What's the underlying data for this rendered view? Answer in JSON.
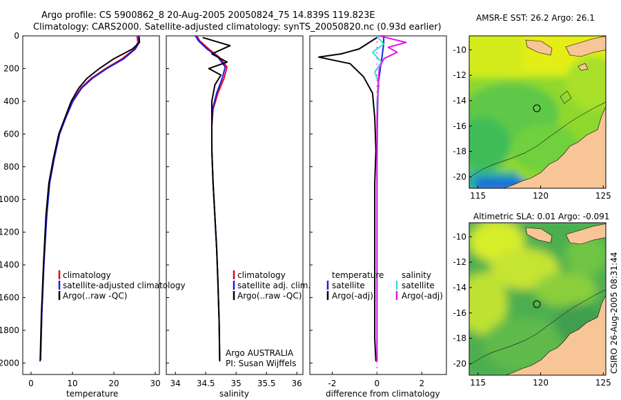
{
  "header": {
    "line1": "Argo profile: CS 5900862_8 20-Aug-2005 20050824_75 14.839S 119.823E",
    "line2": "Climatology: CARS2000. Satellite-adjusted climatology: synTS_20050820.nc (0.93d earlier)"
  },
  "side_label": "CSIRO 26-Aug-2005 08:31:44",
  "depth_axis": {
    "ticks": [
      "0",
      "200",
      "400",
      "600",
      "800",
      "1000",
      "1200",
      "1400",
      "1600",
      "1800",
      "2000"
    ],
    "values": [
      0,
      200,
      400,
      600,
      800,
      1000,
      1200,
      1400,
      1600,
      1800,
      2000
    ],
    "ylim": [
      2070,
      0
    ]
  },
  "panels": {
    "temperature": {
      "xlabel": "temperature",
      "xlim": [
        -2,
        31
      ],
      "ticks": [
        "0",
        "10",
        "20",
        "30"
      ],
      "tick_values": [
        0,
        10,
        20,
        30
      ],
      "legend": [
        "climatology",
        "satellite-adjusted climatology",
        "Argo(..raw -QC)"
      ]
    },
    "salinity": {
      "xlabel": "salinity",
      "xlim": [
        33.85,
        36.1
      ],
      "ticks": [
        "34",
        "34.5",
        "35",
        "35.5",
        "36"
      ],
      "tick_values": [
        34,
        34.5,
        35,
        35.5,
        36
      ],
      "legend": [
        "climatology",
        "satellite adj. clim.",
        "Argo(..raw -QC)"
      ],
      "note1": "Argo AUSTRALIA",
      "note2": "PI: Susan Wijffels"
    },
    "difference": {
      "xlabel": "difference from climatology",
      "xlim": [
        -3,
        3.1
      ],
      "ticks": [
        "-2",
        "0",
        "2"
      ],
      "tick_values": [
        -2,
        0,
        2
      ],
      "legend_temp_title": "temperature",
      "legend_temp": [
        "satellite",
        "Argo(-adj)"
      ],
      "legend_sal_title": "salinity",
      "legend_sal": [
        "satellite",
        "Argo(-adj)"
      ]
    }
  },
  "maps": [
    {
      "title": "AMSR-E SST: 26.2 Argo: 26.1",
      "xticks": [
        "115",
        "120",
        "125"
      ],
      "xtick_values": [
        115,
        120,
        125
      ],
      "yticks": [
        "-10",
        "-12",
        "-14",
        "-16",
        "-18",
        "-20"
      ],
      "ytick_values": [
        -10,
        -12,
        -14,
        -16,
        -18,
        -20
      ],
      "float_lon": 119.823,
      "float_lat": -14.839
    },
    {
      "title": "Altimetric SLA: 0.01 Argo: -0.091",
      "xticks": [
        "115",
        "120",
        "125"
      ],
      "xtick_values": [
        115,
        120,
        125
      ],
      "yticks": [
        "-10",
        "-12",
        "-14",
        "-16",
        "-18",
        "-20"
      ],
      "ytick_values": [
        -10,
        -12,
        -14,
        -16,
        -18,
        -20
      ],
      "float_lon": 119.823,
      "float_lat": -14.839
    }
  ],
  "colors": {
    "climatology": "#e8001c",
    "satellite": "#1a1ae6",
    "argo": "#000000",
    "sal_satellite": "#33dddd",
    "sal_argo": "#e61ae6",
    "land": "#f7c596"
  },
  "chart_data": [
    {
      "type": "line",
      "title": "temperature profile",
      "xlabel": "temperature",
      "ylabel": "depth",
      "series": [
        {
          "name": "climatology",
          "x": [
            25.6,
            25.8,
            25.0,
            22.0,
            18.0,
            14.5,
            12.0,
            10.0,
            8.3,
            6.8,
            5.5,
            4.4,
            3.7,
            3.1,
            2.6,
            2.3
          ],
          "y": [
            0,
            40,
            80,
            140,
            200,
            260,
            320,
            400,
            500,
            600,
            750,
            900,
            1100,
            1400,
            1700,
            1980
          ]
        },
        {
          "name": "satellite-adjusted climatology",
          "x": [
            26.0,
            26.1,
            25.2,
            22.4,
            18.3,
            14.8,
            12.2,
            10.1,
            8.4,
            6.9,
            5.6,
            4.5,
            3.8,
            3.1,
            2.6,
            2.3
          ],
          "y": [
            0,
            40,
            80,
            140,
            200,
            260,
            320,
            400,
            500,
            600,
            750,
            900,
            1100,
            1400,
            1700,
            1980
          ]
        },
        {
          "name": "Argo(..raw -QC)",
          "x": [
            26.1,
            26.2,
            24.5,
            20.0,
            16.5,
            13.5,
            11.5,
            9.7,
            8.2,
            6.7,
            5.4,
            4.3,
            3.6,
            3.0,
            2.5,
            2.2
          ],
          "y": [
            5,
            40,
            80,
            140,
            200,
            260,
            320,
            400,
            500,
            600,
            750,
            900,
            1100,
            1400,
            1700,
            1990
          ]
        }
      ]
    },
    {
      "type": "line",
      "title": "salinity profile",
      "xlabel": "salinity",
      "ylabel": "depth",
      "series": [
        {
          "name": "climatology",
          "x": [
            34.35,
            34.4,
            34.55,
            34.72,
            34.85,
            34.8,
            34.7,
            34.62,
            34.6,
            34.6,
            34.62,
            34.65,
            34.68,
            34.7,
            34.72,
            34.73
          ],
          "y": [
            0,
            30,
            80,
            130,
            190,
            260,
            350,
            450,
            550,
            700,
            900,
            1100,
            1300,
            1500,
            1750,
            1980
          ]
        },
        {
          "name": "satellite adj. clim.",
          "x": [
            34.33,
            34.38,
            34.52,
            34.7,
            34.82,
            34.77,
            34.68,
            34.61,
            34.6,
            34.6,
            34.62,
            34.65,
            34.68,
            34.7,
            34.72,
            34.73
          ],
          "y": [
            0,
            30,
            80,
            130,
            190,
            260,
            350,
            450,
            550,
            700,
            900,
            1100,
            1300,
            1500,
            1750,
            1980
          ]
        },
        {
          "name": "Argo(..raw -QC)",
          "x": [
            34.45,
            34.9,
            34.6,
            34.85,
            34.55,
            34.75,
            34.65,
            34.6,
            34.6,
            34.6,
            34.62,
            34.65,
            34.68,
            34.7,
            34.72,
            34.73
          ],
          "y": [
            10,
            60,
            110,
            160,
            200,
            240,
            300,
            400,
            550,
            700,
            900,
            1100,
            1300,
            1500,
            1750,
            1990
          ]
        }
      ]
    },
    {
      "type": "line",
      "title": "difference from climatology",
      "xlabel": "difference from climatology",
      "ylabel": "depth",
      "series": [
        {
          "name": "temperature satellite",
          "x": [
            0.3,
            0.3,
            0.25,
            0.15,
            0.05,
            0.02,
            0.0,
            0.0,
            0.0
          ],
          "y": [
            0,
            50,
            100,
            200,
            300,
            500,
            800,
            1200,
            1990
          ]
        },
        {
          "name": "temperature Argo(-adj)",
          "x": [
            0.0,
            -0.8,
            -1.6,
            -2.6,
            -1.2,
            -0.6,
            -0.2,
            -0.1,
            -0.05,
            -0.1,
            -0.1,
            -0.1,
            -0.1,
            -0.1,
            -0.1,
            -0.05
          ],
          "y": [
            10,
            80,
            110,
            130,
            170,
            250,
            350,
            500,
            700,
            900,
            1100,
            1300,
            1500,
            1700,
            1850,
            1990
          ]
        },
        {
          "name": "salinity satellite",
          "x": [
            0.0,
            0.3,
            -0.2,
            0.2,
            -0.1,
            0.1,
            0.0,
            0.0,
            0.0
          ],
          "y": [
            0,
            50,
            100,
            160,
            220,
            300,
            400,
            700,
            1990
          ]
        },
        {
          "name": "salinity Argo(-adj)",
          "x": [
            0.1,
            1.3,
            0.5,
            0.9,
            0.3,
            0.1,
            0.05,
            0.0,
            0.0
          ],
          "y": [
            0,
            40,
            70,
            100,
            140,
            200,
            300,
            500,
            1990
          ]
        }
      ]
    }
  ]
}
